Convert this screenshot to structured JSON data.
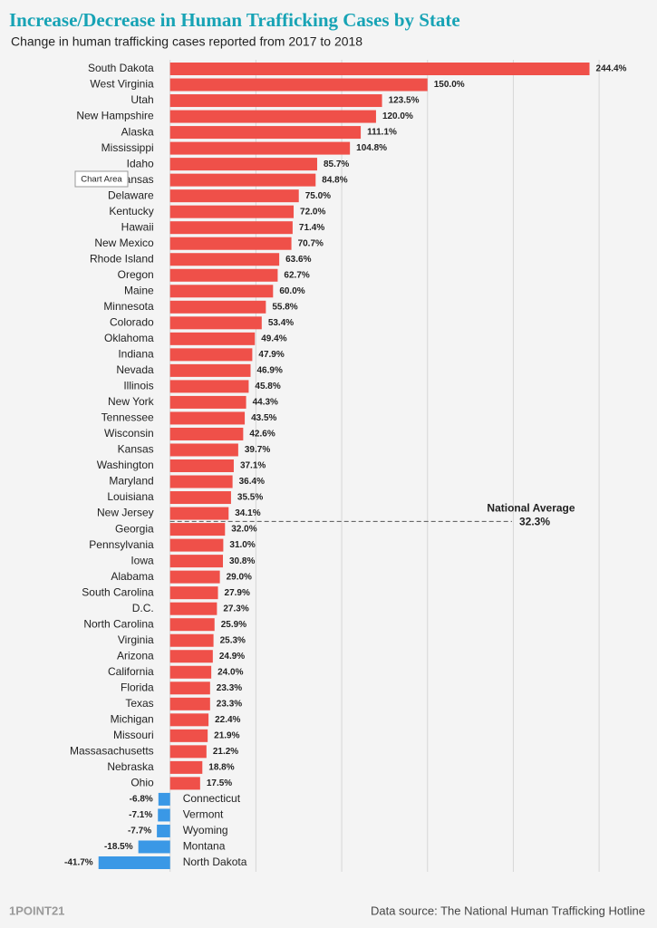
{
  "chart_data": {
    "type": "bar",
    "title": "Increase/Decrease in Human Trafficking Cases by State",
    "subtitle": "Change in human trafficking cases reported from 2017 to 2018",
    "categories": [
      "South Dakota",
      "West Virginia",
      "Utah",
      "New Hampshire",
      "Alaska",
      "Mississippi",
      "Idaho",
      "Arkansas",
      "Delaware",
      "Kentucky",
      "Hawaii",
      "New Mexico",
      "Rhode Island",
      "Oregon",
      "Maine",
      "Minnesota",
      "Colorado",
      "Oklahoma",
      "Indiana",
      "Nevada",
      "Illinois",
      "New York",
      "Tennessee",
      "Wisconsin",
      "Kansas",
      "Washington",
      "Maryland",
      "Louisiana",
      "New Jersey",
      "Georgia",
      "Pennsylvania",
      "Iowa",
      "Alabama",
      "South Carolina",
      "D.C.",
      "North Carolina",
      "Virginia",
      "Arizona",
      "California",
      "Florida",
      "Texas",
      "Michigan",
      "Missouri",
      "Massasachusetts",
      "Nebraska",
      "Ohio",
      "Connecticut",
      "Vermont",
      "Wyoming",
      "Montana",
      "North Dakota"
    ],
    "values": [
      244.4,
      150.0,
      123.5,
      120.0,
      111.1,
      104.8,
      85.7,
      84.8,
      75.0,
      72.0,
      71.4,
      70.7,
      63.6,
      62.7,
      60.0,
      55.8,
      53.4,
      49.4,
      47.9,
      46.9,
      45.8,
      44.3,
      43.5,
      42.6,
      39.7,
      37.1,
      36.4,
      35.5,
      34.1,
      32.0,
      31.0,
      30.8,
      29.0,
      27.9,
      27.3,
      25.9,
      25.3,
      24.9,
      24.0,
      23.3,
      23.3,
      22.4,
      21.9,
      21.2,
      18.8,
      17.5,
      -6.8,
      -7.1,
      -7.7,
      -18.5,
      -41.7
    ],
    "value_labels": [
      "244.4%",
      "150.0%",
      "123.5%",
      "120.0%",
      "111.1%",
      "104.8%",
      "85.7%",
      "84.8%",
      "75.0%",
      "72.0%",
      "71.4%",
      "70.7%",
      "63.6%",
      "62.7%",
      "60.0%",
      "55.8%",
      "53.4%",
      "49.4%",
      "47.9%",
      "46.9%",
      "45.8%",
      "44.3%",
      "43.5%",
      "42.6%",
      "39.7%",
      "37.1%",
      "36.4%",
      "35.5%",
      "34.1%",
      "32.0%",
      "31.0%",
      "30.8%",
      "29.0%",
      "27.9%",
      "27.3%",
      "25.9%",
      "25.3%",
      "24.9%",
      "24.0%",
      "23.3%",
      "23.3%",
      "22.4%",
      "21.9%",
      "21.2%",
      "18.8%",
      "17.5%",
      "-6.8%",
      "-7.1%",
      "-7.7%",
      "-18.5%",
      "-41.7%"
    ],
    "color": "#ef5049",
    "negative_color": "#3a98e6",
    "xlim": [
      -50,
      270
    ],
    "xticks": [
      0,
      50,
      100,
      150,
      200,
      250
    ],
    "grid": true,
    "reference_line": {
      "label": "National Average",
      "value": 32.3,
      "value_label": "32.3%"
    },
    "tooltip": "Chart Area",
    "logo": "1POINT21",
    "source": "Data source: The National Human Trafficking Hotline"
  }
}
